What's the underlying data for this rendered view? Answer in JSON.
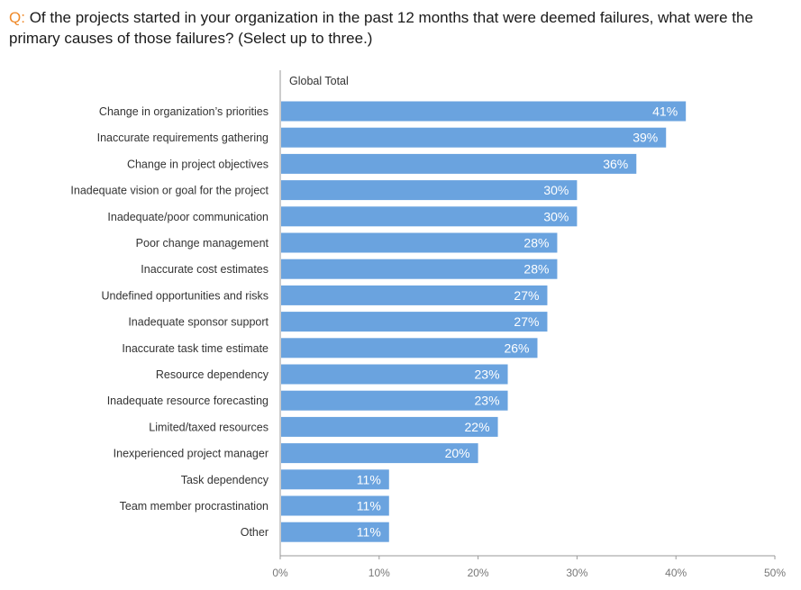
{
  "question": {
    "prefix": "Q:",
    "text": "Of the projects started in your organization in the past 12 months that were deemed failures, what were the primary causes of those failures? (Select up to three.)"
  },
  "colors": {
    "bar": "#6aa3df",
    "accent": "#ef8a2a",
    "axis": "#999999"
  },
  "chart_data": {
    "type": "bar",
    "orientation": "horizontal",
    "title": "Of the projects started in your organization in the past 12 months that were deemed failures, what were the primary causes of those failures? (Select up to three.)",
    "series_name": "Global Total",
    "categories": [
      "Change in organization’s priorities",
      "Inaccurate requirements gathering",
      "Change in project objectives",
      "Inadequate vision or goal for the project",
      "Inadequate/poor communication",
      "Poor change management",
      "Inaccurate cost estimates",
      "Undefined opportunities and risks",
      "Inadequate sponsor support",
      "Inaccurate task time estimate",
      "Resource dependency",
      "Inadequate resource forecasting",
      "Limited/taxed resources",
      "Inexperienced project manager",
      "Task dependency",
      "Team member procrastination",
      "Other"
    ],
    "values": [
      41,
      39,
      36,
      30,
      30,
      28,
      28,
      27,
      27,
      26,
      23,
      23,
      22,
      20,
      11,
      11,
      11
    ],
    "value_labels": [
      "41%",
      "39%",
      "36%",
      "30%",
      "30%",
      "28%",
      "28%",
      "27%",
      "27%",
      "26%",
      "23%",
      "23%",
      "22%",
      "20%",
      "11%",
      "11%",
      "11%"
    ],
    "xlim": [
      0,
      50
    ],
    "x_ticks": [
      0,
      10,
      20,
      30,
      40,
      50
    ],
    "x_tick_labels": [
      "0%",
      "10%",
      "20%",
      "30%",
      "40%",
      "50%"
    ],
    "xlabel": "",
    "ylabel": "",
    "grid": false,
    "legend": "none"
  }
}
